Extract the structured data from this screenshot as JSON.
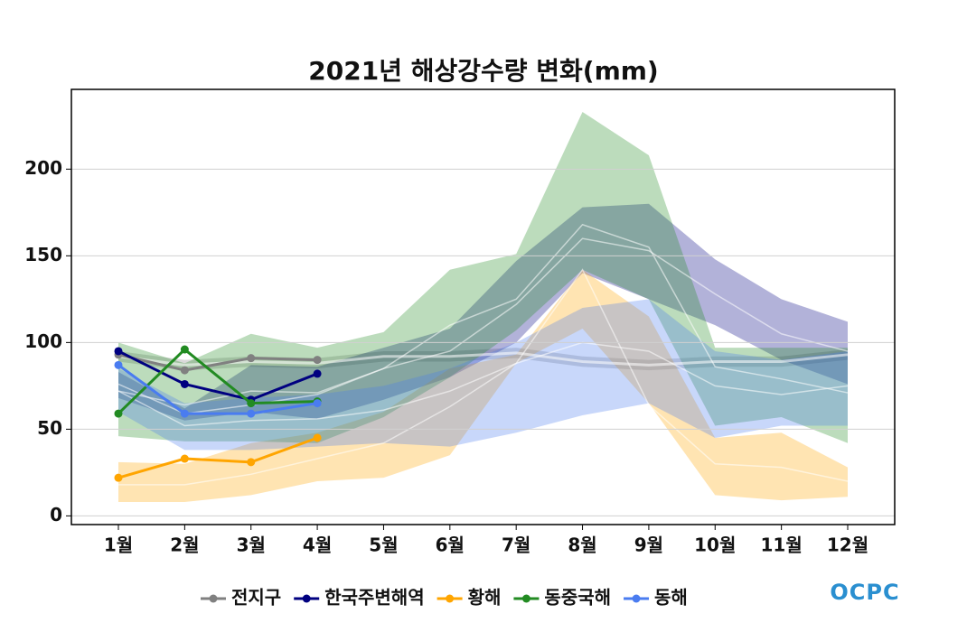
{
  "chart_data": {
    "type": "line",
    "title": "2021년 해상강수량 변화(mm)",
    "categories": [
      "1월",
      "2월",
      "3월",
      "4월",
      "5월",
      "6월",
      "7월",
      "8월",
      "9월",
      "10월",
      "11월",
      "12월"
    ],
    "ylim": [
      -5,
      246
    ],
    "yticks": [
      0,
      50,
      100,
      150,
      200
    ],
    "grid": true,
    "legend": "bottom",
    "logo": "OCPC",
    "series": [
      {
        "name": "전지구",
        "color": "#808080",
        "values": [
          93,
          84,
          91,
          90,
          null,
          null,
          null,
          null,
          null,
          null,
          null,
          null
        ],
        "mean": [
          92,
          87,
          89,
          88,
          92,
          92,
          94,
          89,
          87,
          89,
          89,
          93
        ],
        "lower": [
          89,
          84,
          86,
          85,
          89,
          89,
          91,
          86,
          84,
          86,
          86,
          90
        ],
        "upper": [
          95,
          90,
          92,
          91,
          95,
          95,
          97,
          92,
          90,
          92,
          92,
          96
        ]
      },
      {
        "name": "한국주변해역",
        "color": "#000080",
        "values": [
          95,
          76,
          67,
          82,
          null,
          null,
          null,
          null,
          null,
          null,
          null,
          null
        ],
        "mean": [
          76,
          59,
          64,
          70,
          85,
          95,
          122,
          160,
          153,
          128,
          105,
          95
        ],
        "lower": [
          68,
          55,
          60,
          56,
          67,
          80,
          100,
          140,
          125,
          110,
          90,
          76
        ],
        "upper": [
          83,
          62,
          87,
          86,
          97,
          108,
          147,
          178,
          180,
          148,
          125,
          112
        ]
      },
      {
        "name": "황해",
        "color": "#ffa500",
        "values": [
          22,
          33,
          31,
          45,
          null,
          null,
          null,
          null,
          null,
          null,
          null,
          null
        ],
        "mean": [
          18,
          18,
          24,
          33,
          42,
          63,
          88,
          142,
          64,
          30,
          28,
          20
        ],
        "lower": [
          8,
          8,
          12,
          20,
          22,
          35,
          88,
          108,
          65,
          12,
          9,
          11
        ],
        "upper": [
          31,
          30,
          42,
          48,
          60,
          85,
          93,
          142,
          115,
          45,
          48,
          28
        ]
      },
      {
        "name": "동중국해",
        "color": "#228b22",
        "values": [
          59,
          96,
          65,
          66,
          null,
          null,
          null,
          null,
          null,
          null,
          null,
          null
        ],
        "mean": [
          72,
          64,
          72,
          71,
          85,
          110,
          125,
          168,
          155,
          86,
          79,
          71
        ],
        "lower": [
          46,
          43,
          43,
          42,
          57,
          80,
          107,
          142,
          125,
          52,
          57,
          42
        ],
        "upper": [
          100,
          88,
          105,
          97,
          106,
          142,
          151,
          233,
          208,
          97,
          97,
          97
        ]
      },
      {
        "name": "동해",
        "color": "#4a7cf0",
        "values": [
          87,
          59,
          59,
          65,
          null,
          null,
          null,
          null,
          null,
          null,
          null,
          null
        ],
        "mean": [
          72,
          52,
          55,
          56,
          61,
          72,
          88,
          100,
          95,
          75,
          70,
          75
        ],
        "lower": [
          60,
          38,
          38,
          40,
          42,
          40,
          48,
          58,
          65,
          45,
          52,
          52
        ],
        "upper": [
          85,
          65,
          68,
          70,
          75,
          85,
          100,
          120,
          125,
          95,
          90,
          95
        ]
      }
    ]
  }
}
